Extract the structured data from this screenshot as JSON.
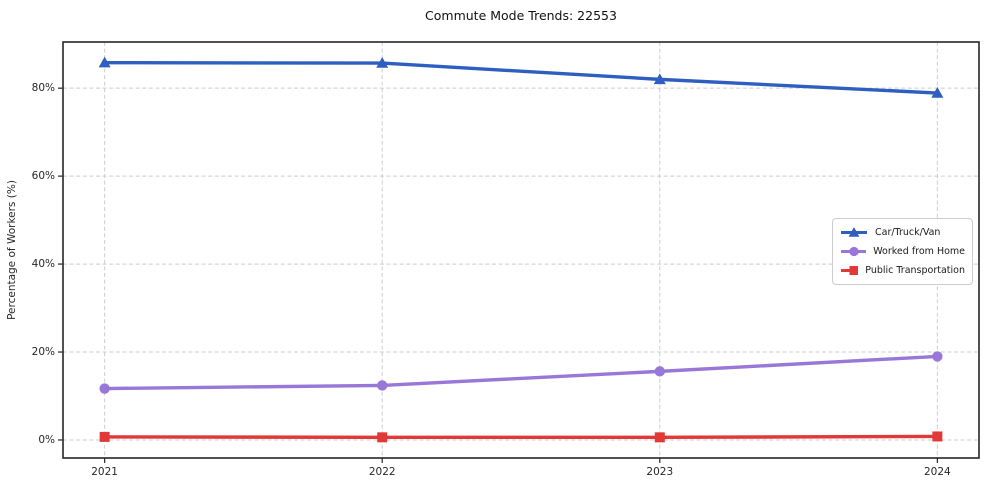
{
  "figure": {
    "background": "#ffffff"
  },
  "chart_data": {
    "type": "line",
    "title": "Commute Mode Trends: 22553",
    "xlabel": "",
    "ylabel": "Percentage of Workers (%)",
    "x": [
      2021,
      2022,
      2023,
      2024
    ],
    "x_tick_labels": [
      "2021",
      "2022",
      "2023",
      "2024"
    ],
    "series": [
      {
        "name": "Car/Truck/Van",
        "color": "#2e5fc0",
        "marker": "triangle",
        "values": [
          85.8,
          85.7,
          82.0,
          78.9
        ]
      },
      {
        "name": "Worked from Home",
        "color": "#9877d9",
        "marker": "circle",
        "values": [
          11.7,
          12.4,
          15.6,
          19.0
        ]
      },
      {
        "name": "Public Transportation",
        "color": "#e03937",
        "marker": "square",
        "values": [
          0.7,
          0.6,
          0.6,
          0.8
        ]
      }
    ],
    "xlim": [
      2020.85,
      2024.15
    ],
    "ylim": [
      -4.1,
      90.5
    ],
    "yticks": [
      0,
      20,
      40,
      60,
      80
    ],
    "ytick_labels": [
      "0%",
      "20%",
      "40%",
      "60%",
      "80%"
    ],
    "grid": true,
    "grid_style": "dashed",
    "legend_position": "center-right",
    "axis_color": "#262626",
    "grid_color": "#cdcdcd"
  }
}
